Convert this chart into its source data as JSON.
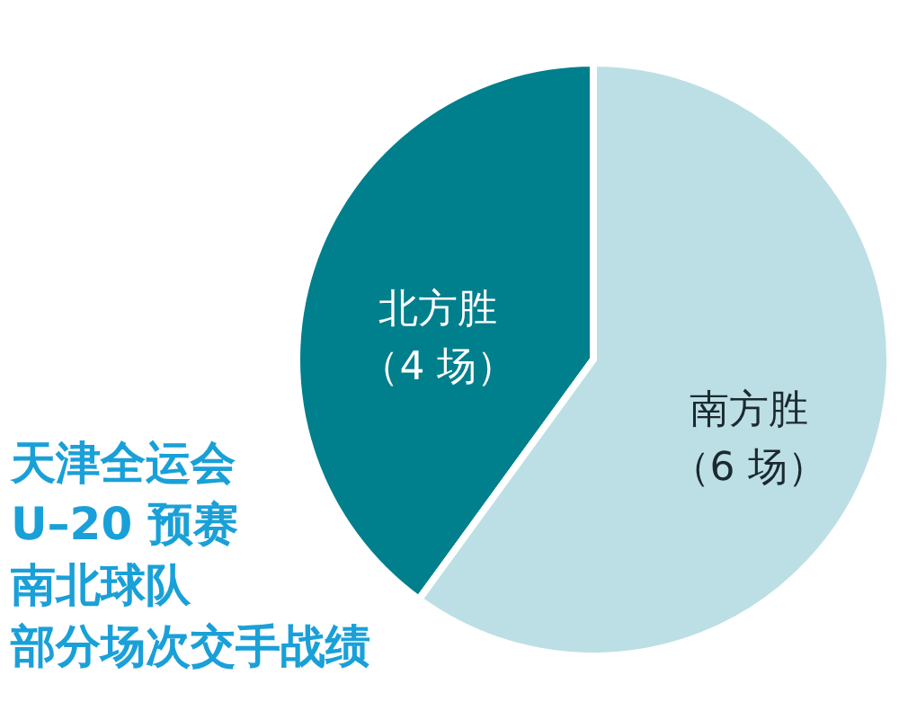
{
  "chart_data": {
    "type": "pie",
    "title": "天津全运会\nU–20 预赛",
    "subtitle": "南北球队",
    "annotations": [
      "部分场次交手战绩"
    ],
    "categories": [
      "北方胜",
      "南方胜"
    ],
    "values": [
      4,
      6
    ],
    "value_labels": [
      "（4 场）",
      "（6 场）"
    ],
    "colors": [
      "#007f8c",
      "#bcdfe5"
    ]
  }
}
